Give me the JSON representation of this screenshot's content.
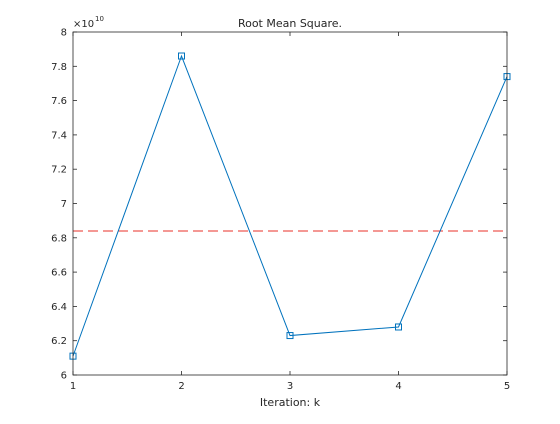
{
  "chart_data": {
    "type": "line",
    "title": "Root Mean Square.",
    "xlabel": "Iteration: k",
    "ylabel": "",
    "x": [
      1,
      2,
      3,
      4,
      5
    ],
    "xlim": [
      1,
      5
    ],
    "ylim": [
      6,
      8
    ],
    "x_ticks": [
      "1",
      "2",
      "3",
      "4",
      "5"
    ],
    "y_ticks": [
      "6",
      "6.2",
      "6.4",
      "6.6",
      "6.8",
      "7",
      "7.2",
      "7.4",
      "7.6",
      "7.8",
      "8"
    ],
    "y_exponent_base": "×10",
    "y_exponent_power": "10",
    "grid": false,
    "series": [
      {
        "values": [
          6.11,
          7.86,
          6.23,
          6.28,
          7.74
        ],
        "color": "#0072BD",
        "marker": "square",
        "line_style": "solid"
      }
    ],
    "reference_line": {
      "value": 6.84,
      "color": "#E8302A",
      "line_style": "dashed"
    }
  }
}
